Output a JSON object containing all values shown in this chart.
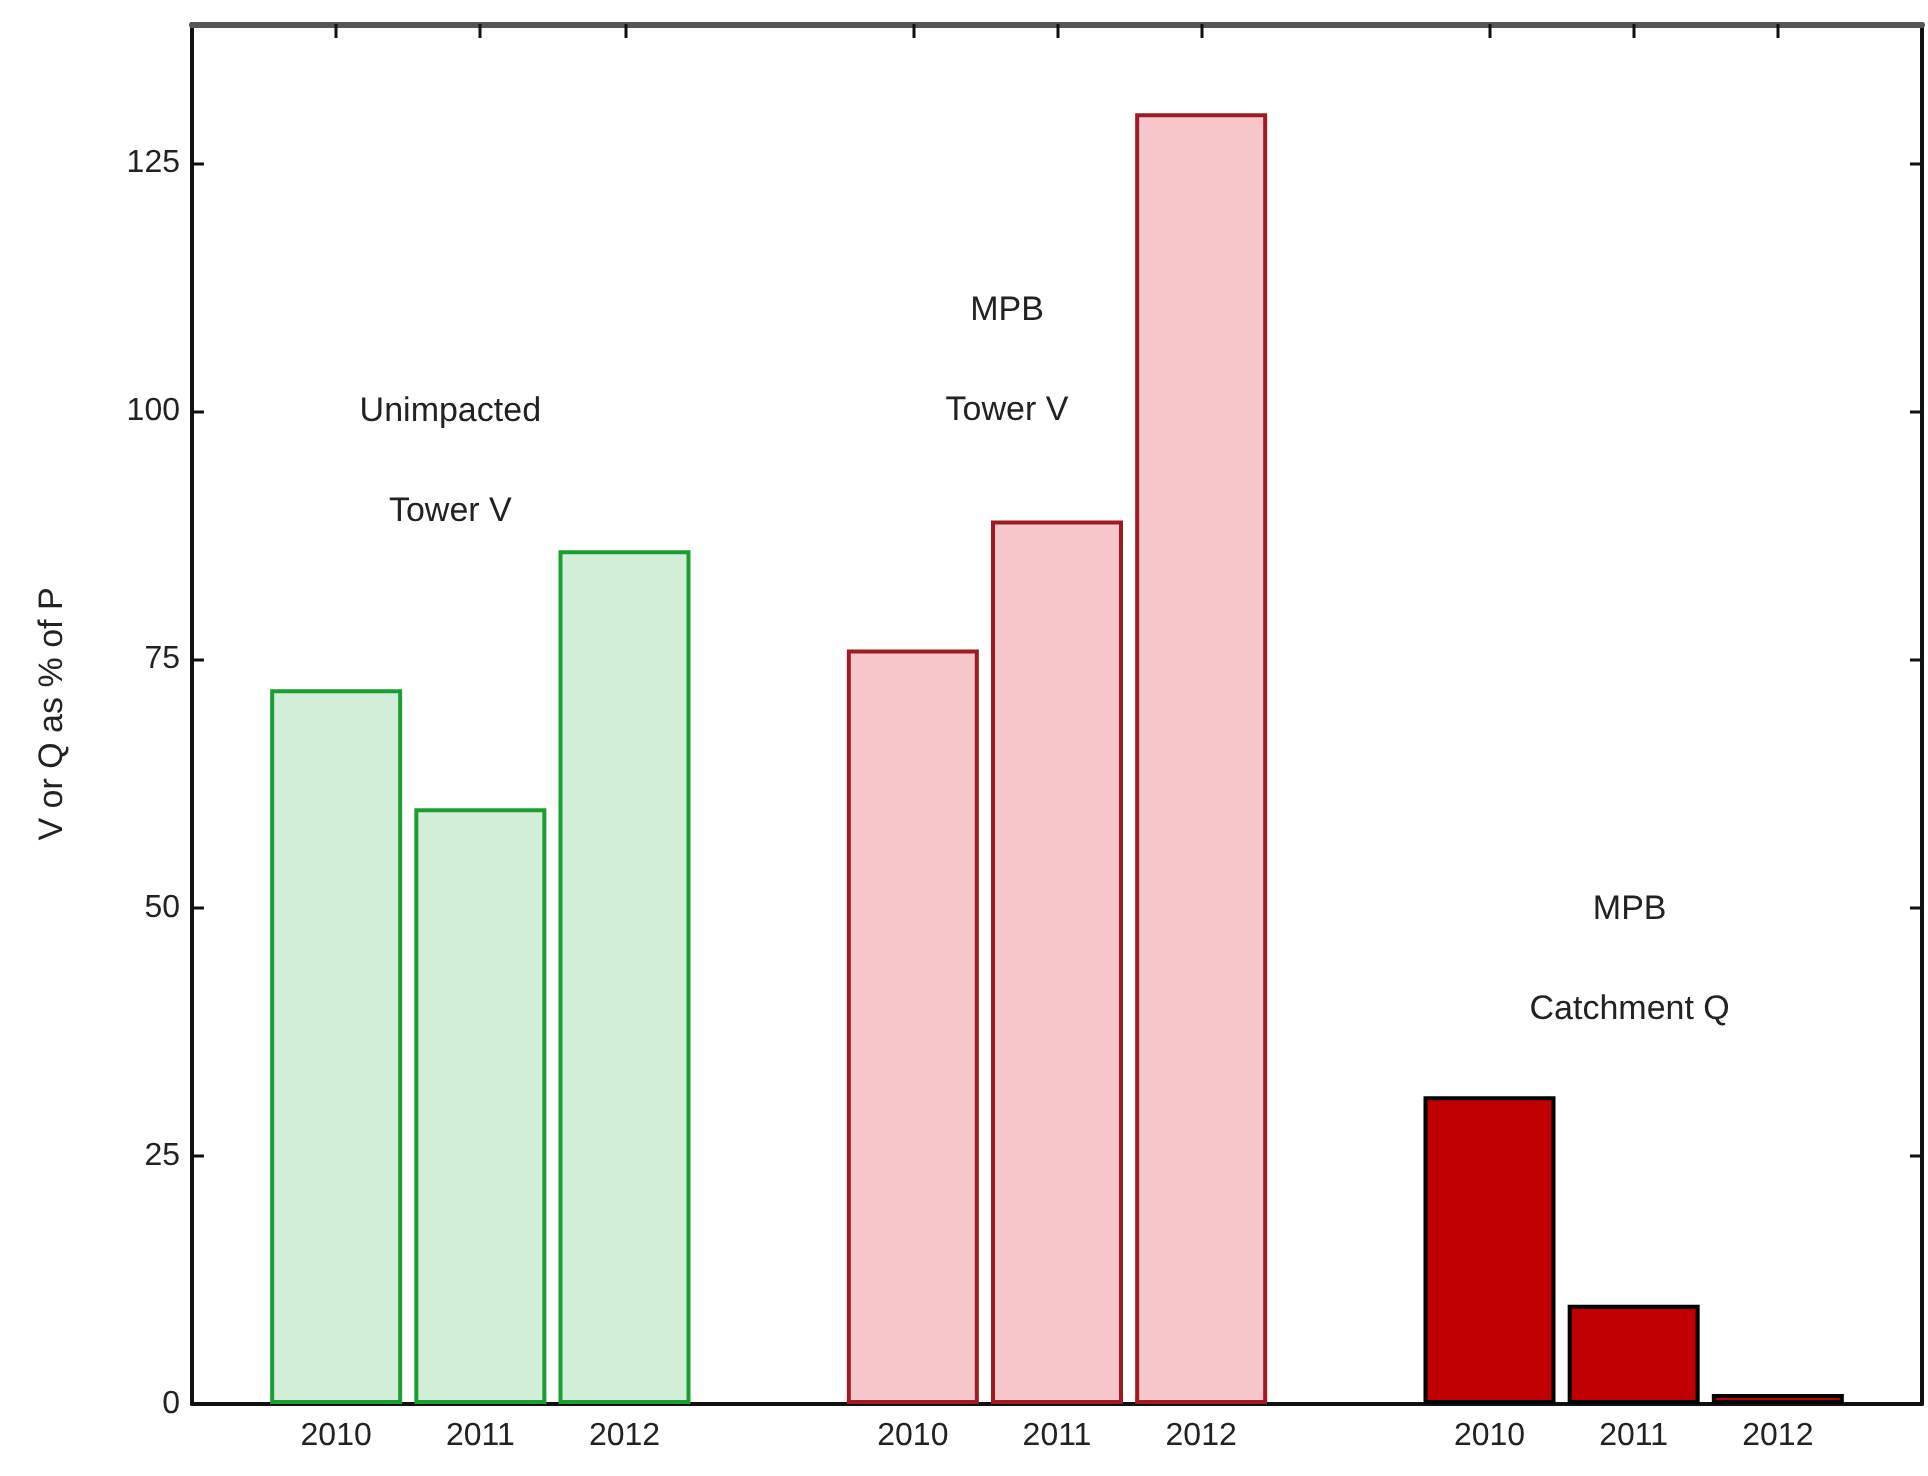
{
  "chart_data": {
    "type": "bar",
    "ylabel": "V or Q as % of P",
    "categories": [
      "2010",
      "2011",
      "2012",
      null,
      "2010",
      "2011",
      "2012",
      null,
      "2010",
      "2011",
      "2012"
    ],
    "series": [
      {
        "name": "Unimpacted\nTower V",
        "color": "#d3eed8",
        "values": [
          72,
          60,
          86,
          null,
          null,
          null,
          null,
          null,
          null,
          null,
          null
        ]
      },
      {
        "name": "MPB\nTower V",
        "color": "#f8c7cb",
        "values": [
          null,
          null,
          null,
          null,
          76,
          89,
          130,
          null,
          null,
          null,
          null
        ]
      },
      {
        "name": "MPB\nCatchment Q",
        "color": "#c00000",
        "values": [
          null,
          null,
          null,
          null,
          null,
          null,
          null,
          null,
          31,
          10,
          1
        ]
      }
    ],
    "ylim": [
      0,
      139
    ],
    "yticks": [
      0,
      25,
      50,
      75,
      100,
      125
    ],
    "grid": false
  }
}
